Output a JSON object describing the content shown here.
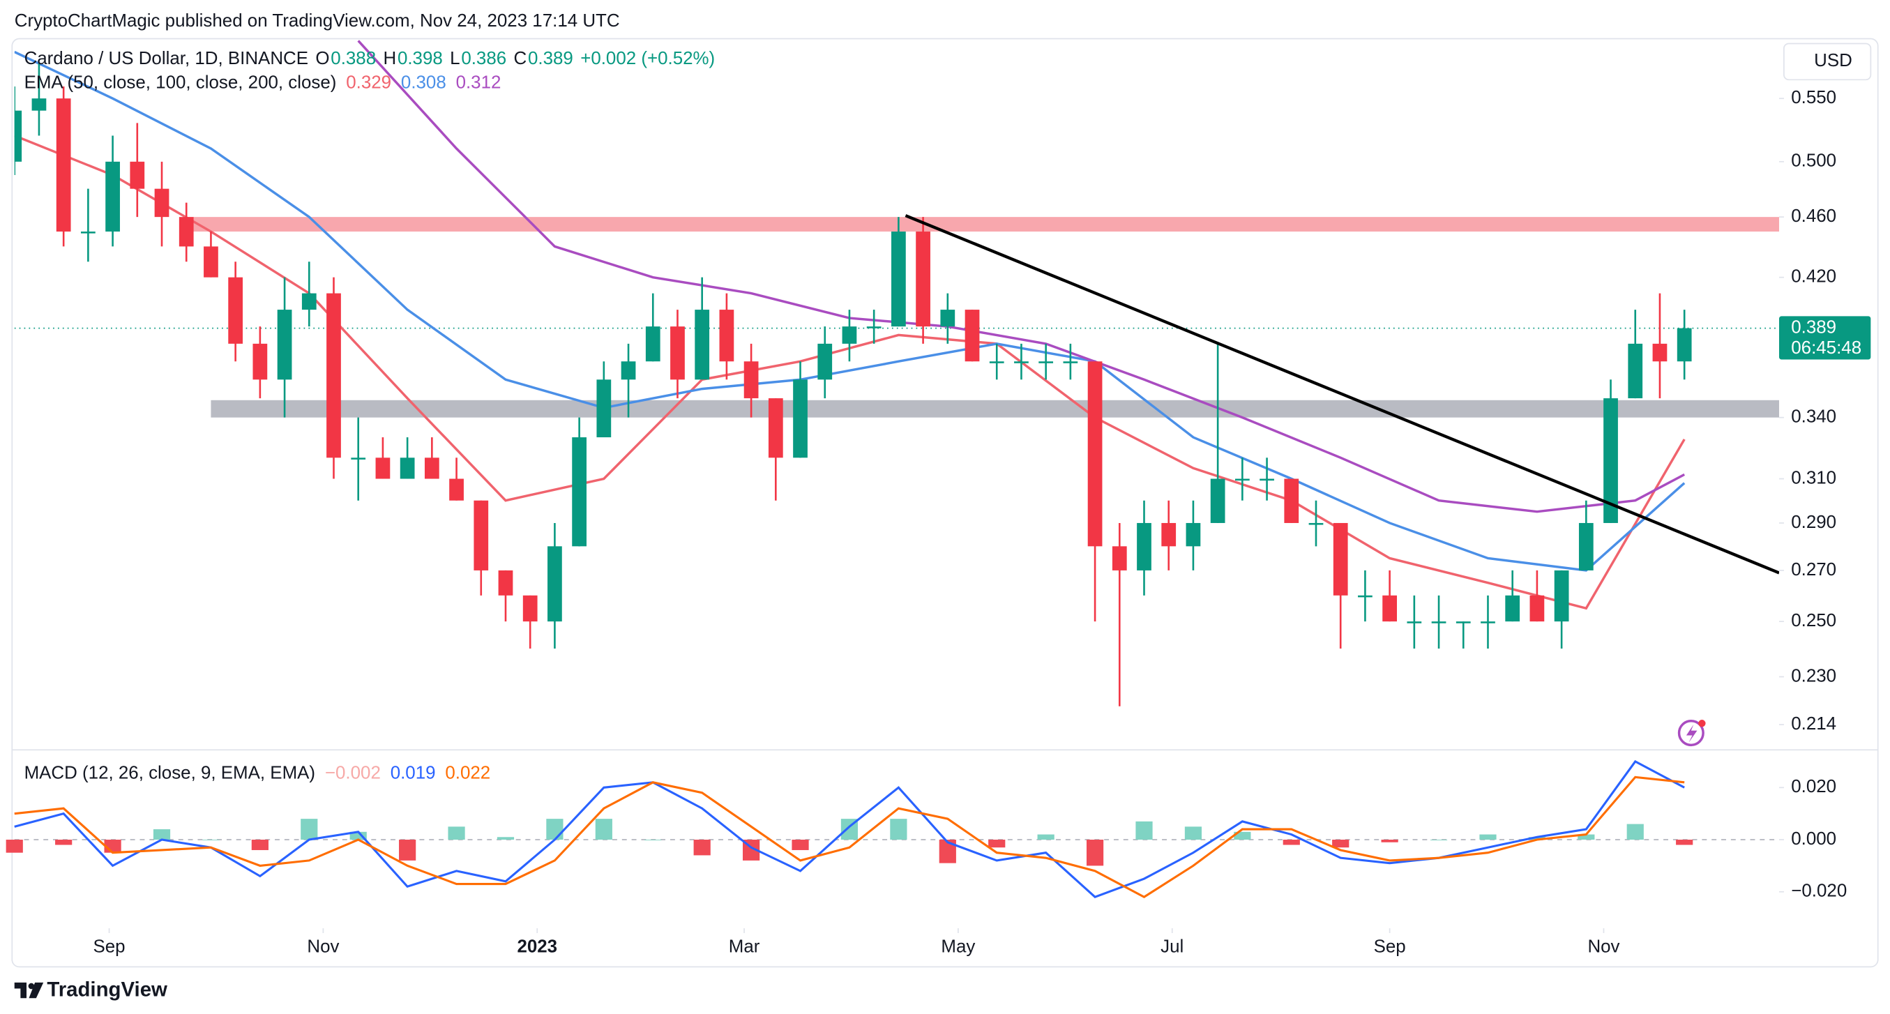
{
  "header": {
    "attribution": "CryptoChartMagic published on TradingView.com, Nov 24, 2023 17:14 UTC",
    "currency": "USD"
  },
  "footer": {
    "brand": "TradingView"
  },
  "chart_data": [
    {
      "type": "candlestick",
      "title": "Cardano / US Dollar, 1D, BINANCE",
      "ohlc": [
        {
          "label": "O",
          "value": "0.388"
        },
        {
          "label": "H",
          "value": "0.398"
        },
        {
          "label": "L",
          "value": "0.386"
        },
        {
          "label": "C",
          "value": "0.389"
        }
      ],
      "change": "+0.002 (+0.52%)",
      "up_color": "#089981",
      "down_color": "#f23645",
      "x": [
        0,
        7,
        14,
        21,
        28,
        35,
        42,
        49,
        56,
        63,
        70,
        77,
        84,
        91,
        98,
        105,
        112,
        119,
        126,
        133,
        140,
        147,
        154,
        161,
        168,
        175,
        182,
        189,
        196,
        203,
        210,
        217,
        224,
        231,
        238,
        245,
        252,
        259,
        266,
        273,
        280,
        287,
        294,
        301,
        308,
        315,
        322,
        329,
        336,
        343,
        350,
        357,
        364,
        371,
        378,
        385,
        392,
        399,
        406,
        413,
        420,
        427,
        434,
        441,
        448,
        455,
        462,
        469,
        476
      ],
      "open": [
        0.5,
        0.54,
        0.55,
        0.45,
        0.45,
        0.5,
        0.48,
        0.46,
        0.44,
        0.42,
        0.38,
        0.36,
        0.4,
        0.41,
        0.32,
        0.32,
        0.31,
        0.32,
        0.31,
        0.3,
        0.27,
        0.26,
        0.25,
        0.28,
        0.33,
        0.36,
        0.37,
        0.39,
        0.36,
        0.4,
        0.37,
        0.35,
        0.32,
        0.36,
        0.38,
        0.39,
        0.39,
        0.45,
        0.39,
        0.4,
        0.37,
        0.37,
        0.37,
        0.37,
        0.37,
        0.28,
        0.27,
        0.29,
        0.28,
        0.29,
        0.31,
        0.31,
        0.31,
        0.29,
        0.29,
        0.26,
        0.26,
        0.25,
        0.25,
        0.25,
        0.25,
        0.25,
        0.26,
        0.25,
        0.27,
        0.29,
        0.35,
        0.38,
        0.37
      ],
      "high": [
        0.56,
        0.58,
        0.56,
        0.48,
        0.52,
        0.53,
        0.5,
        0.47,
        0.45,
        0.43,
        0.39,
        0.42,
        0.43,
        0.42,
        0.34,
        0.33,
        0.33,
        0.33,
        0.32,
        0.3,
        0.27,
        0.26,
        0.29,
        0.34,
        0.37,
        0.38,
        0.41,
        0.4,
        0.42,
        0.41,
        0.38,
        0.35,
        0.37,
        0.39,
        0.4,
        0.4,
        0.46,
        0.46,
        0.41,
        0.4,
        0.38,
        0.38,
        0.38,
        0.38,
        0.37,
        0.29,
        0.3,
        0.3,
        0.3,
        0.38,
        0.32,
        0.32,
        0.31,
        0.3,
        0.29,
        0.27,
        0.27,
        0.26,
        0.26,
        0.25,
        0.26,
        0.27,
        0.27,
        0.27,
        0.3,
        0.36,
        0.4,
        0.41,
        0.4
      ],
      "low": [
        0.49,
        0.52,
        0.44,
        0.43,
        0.44,
        0.46,
        0.44,
        0.43,
        0.42,
        0.37,
        0.35,
        0.34,
        0.39,
        0.31,
        0.3,
        0.31,
        0.31,
        0.31,
        0.3,
        0.26,
        0.25,
        0.24,
        0.24,
        0.28,
        0.33,
        0.34,
        0.37,
        0.35,
        0.36,
        0.36,
        0.34,
        0.3,
        0.32,
        0.35,
        0.37,
        0.38,
        0.39,
        0.38,
        0.38,
        0.37,
        0.36,
        0.36,
        0.36,
        0.36,
        0.25,
        0.22,
        0.26,
        0.27,
        0.27,
        0.29,
        0.3,
        0.3,
        0.29,
        0.28,
        0.24,
        0.25,
        0.25,
        0.24,
        0.24,
        0.24,
        0.24,
        0.25,
        0.25,
        0.24,
        0.27,
        0.29,
        0.35,
        0.35,
        0.36
      ],
      "close": [
        0.54,
        0.55,
        0.45,
        0.45,
        0.5,
        0.48,
        0.46,
        0.44,
        0.42,
        0.38,
        0.36,
        0.4,
        0.41,
        0.32,
        0.32,
        0.31,
        0.32,
        0.31,
        0.3,
        0.27,
        0.26,
        0.25,
        0.28,
        0.33,
        0.36,
        0.37,
        0.39,
        0.36,
        0.4,
        0.37,
        0.35,
        0.32,
        0.36,
        0.38,
        0.39,
        0.39,
        0.45,
        0.39,
        0.4,
        0.37,
        0.37,
        0.37,
        0.37,
        0.37,
        0.28,
        0.27,
        0.29,
        0.28,
        0.29,
        0.31,
        0.31,
        0.31,
        0.29,
        0.29,
        0.26,
        0.26,
        0.25,
        0.25,
        0.25,
        0.25,
        0.25,
        0.26,
        0.25,
        0.27,
        0.29,
        0.35,
        0.38,
        0.37,
        0.389
      ],
      "overlay_title": "EMA (50, close, 100, close, 200, close)",
      "overlays": [
        {
          "color": "#f0636d",
          "last": "0.329",
          "x": [
            0,
            28,
            56,
            84,
            112,
            140,
            168,
            196,
            224,
            252,
            280,
            308,
            336,
            364,
            392,
            420,
            448,
            476
          ],
          "values": [
            0.52,
            0.49,
            0.45,
            0.41,
            0.35,
            0.3,
            0.31,
            0.36,
            0.37,
            0.385,
            0.38,
            0.34,
            0.315,
            0.3,
            0.275,
            0.265,
            0.255,
            0.329
          ]
        },
        {
          "color": "#4a8fe7",
          "last": "0.308",
          "x": [
            0,
            28,
            56,
            84,
            112,
            140,
            168,
            196,
            224,
            252,
            280,
            308,
            336,
            364,
            392,
            420,
            448,
            476
          ],
          "values": [
            0.59,
            0.55,
            0.51,
            0.46,
            0.4,
            0.36,
            0.345,
            0.355,
            0.36,
            0.37,
            0.38,
            0.37,
            0.33,
            0.31,
            0.29,
            0.275,
            0.27,
            0.308
          ]
        },
        {
          "color": "#a94cc0",
          "last": "0.312",
          "x": [
            98,
            126,
            154,
            182,
            210,
            238,
            266,
            294,
            322,
            350,
            378,
            406,
            434,
            462,
            476
          ],
          "values": [
            0.6,
            0.51,
            0.44,
            0.42,
            0.41,
            0.395,
            0.39,
            0.38,
            0.36,
            0.34,
            0.32,
            0.3,
            0.295,
            0.3,
            0.312
          ]
        }
      ],
      "zones": [
        {
          "from": 0.45,
          "to": 0.46,
          "x": [
            51,
            503
          ],
          "color": "#f8a7ad"
        },
        {
          "from": 0.34,
          "to": 0.349,
          "x": [
            56,
            503
          ],
          "color": "#b9bbc3"
        }
      ],
      "trendline": {
        "x": [
          254,
          503
        ],
        "values": [
          0.461,
          0.269
        ],
        "color": "#000000"
      },
      "current_price": {
        "value": 0.389,
        "label": "0.389",
        "countdown": "06:45:48"
      },
      "log_scale": true,
      "xlim": [
        0,
        503
      ],
      "ylim": [
        0.206,
        0.604
      ],
      "yticks": [
        {
          "value": 0.55,
          "label": "0.550"
        },
        {
          "value": 0.5,
          "label": "0.500"
        },
        {
          "value": 0.46,
          "label": "0.460"
        },
        {
          "value": 0.42,
          "label": "0.420"
        },
        {
          "value": 0.34,
          "label": "0.340"
        },
        {
          "value": 0.31,
          "label": "0.310"
        },
        {
          "value": 0.29,
          "label": "0.290"
        },
        {
          "value": 0.27,
          "label": "0.270"
        },
        {
          "value": 0.25,
          "label": "0.250"
        },
        {
          "value": 0.23,
          "label": "0.230"
        },
        0.214
      ]
    },
    {
      "type": "macd",
      "title": "MACD (12, 26, close, 9, EMA, EMA)",
      "x": [
        0,
        14,
        28,
        42,
        56,
        70,
        84,
        98,
        112,
        126,
        140,
        154,
        168,
        182,
        196,
        210,
        224,
        238,
        252,
        266,
        280,
        294,
        308,
        322,
        336,
        350,
        364,
        378,
        392,
        406,
        420,
        434,
        448,
        462,
        476
      ],
      "histogram": {
        "last": "−0.002",
        "last_color": "#f7a9a7",
        "up_color": "#7fd3c3",
        "down_color": "#f04a55",
        "values": [
          -0.005,
          -0.002,
          -0.005,
          0.004,
          0,
          -0.004,
          0.008,
          0.003,
          -0.008,
          0.005,
          0.001,
          0.008,
          0.008,
          0,
          -0.006,
          -0.008,
          -0.004,
          0.008,
          0.008,
          -0.009,
          -0.003,
          0.002,
          -0.01,
          0.007,
          0.005,
          0.003,
          -0.002,
          -0.003,
          -0.001,
          0,
          0.002,
          0.001,
          0.002,
          0.006,
          -0.002
        ]
      },
      "series": [
        {
          "color": "#2962ff",
          "last": "0.019",
          "values": [
            0.005,
            0.01,
            -0.01,
            0,
            -0.003,
            -0.014,
            0,
            0.003,
            -0.018,
            -0.012,
            -0.016,
            0,
            0.02,
            0.022,
            0.012,
            -0.003,
            -0.012,
            0.005,
            0.02,
            -0.001,
            -0.008,
            -0.005,
            -0.022,
            -0.015,
            -0.005,
            0.007,
            0.002,
            -0.007,
            -0.009,
            -0.007,
            -0.003,
            0.001,
            0.004,
            0.03,
            0.02
          ]
        },
        {
          "color": "#ff6d00",
          "last": "0.022",
          "values": [
            0.01,
            0.012,
            -0.005,
            -0.004,
            -0.003,
            -0.01,
            -0.008,
            0,
            -0.01,
            -0.017,
            -0.017,
            -0.008,
            0.012,
            0.022,
            0.018,
            0.005,
            -0.008,
            -0.003,
            0.012,
            0.008,
            -0.005,
            -0.007,
            -0.012,
            -0.022,
            -0.01,
            0.004,
            0.004,
            -0.004,
            -0.008,
            -0.007,
            -0.005,
            0,
            0.002,
            0.024,
            0.022
          ]
        }
      ],
      "xlim": [
        0,
        503
      ],
      "xticks": [
        {
          "value": 27,
          "label": "Sep"
        },
        {
          "value": 88,
          "label": "Nov"
        },
        {
          "value": 149,
          "label": "2023"
        },
        {
          "value": 208,
          "label": "Mar"
        },
        {
          "value": 269,
          "label": "May"
        },
        {
          "value": 330,
          "label": "Jul"
        },
        {
          "value": 392,
          "label": "Sep"
        },
        {
          "value": 453,
          "label": "Nov"
        }
      ],
      "ylim": [
        -0.034,
        0.034
      ],
      "yticks": [
        {
          "value": 0.02,
          "label": "0.020"
        },
        {
          "value": 0,
          "label": "0.000"
        },
        {
          "value": -0.02,
          "label": "−0.020"
        }
      ]
    }
  ]
}
